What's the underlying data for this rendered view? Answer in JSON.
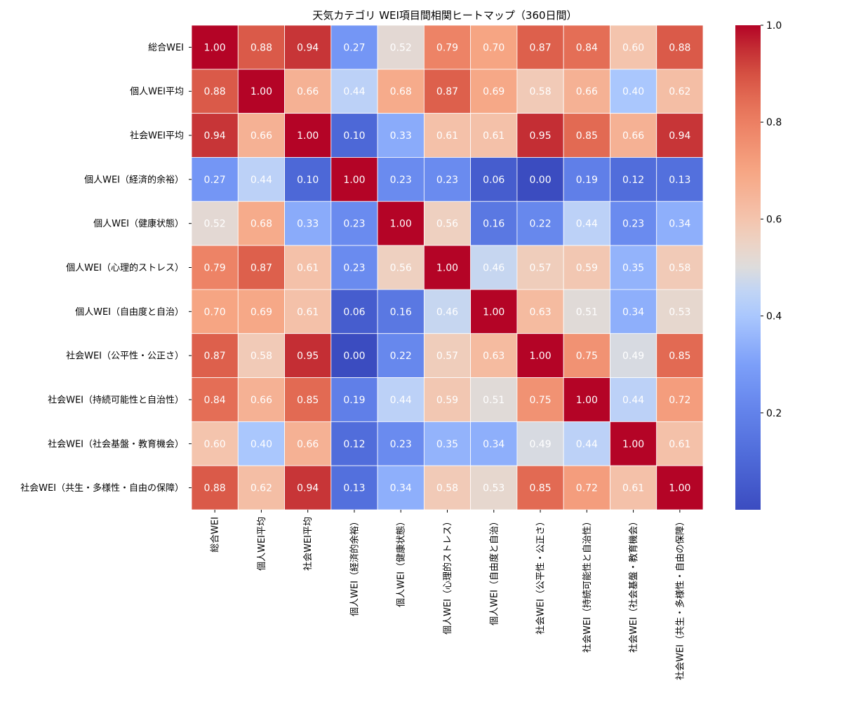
{
  "chart_data": {
    "type": "heatmap",
    "title": "天気カテゴリ WEI項目間相関ヒートマップ（360日間）",
    "xlabel": "",
    "ylabel": "",
    "labels": [
      "総合WEI",
      "個人WEI平均",
      "社会WEI平均",
      "個人WEI（経済的余裕）",
      "個人WEI（健康状態）",
      "個人WEI（心理的ストレス）",
      "個人WEI（自由度と自治）",
      "社会WEI（公平性・公正さ）",
      "社会WEI（持続可能性と自治性）",
      "社会WEI（社会基盤・教育機会）",
      "社会WEI（共生・多様性・自由の保障）"
    ],
    "values": [
      [
        1.0,
        0.88,
        0.94,
        0.27,
        0.52,
        0.79,
        0.7,
        0.87,
        0.84,
        0.6,
        0.88
      ],
      [
        0.88,
        1.0,
        0.66,
        0.44,
        0.68,
        0.87,
        0.69,
        0.58,
        0.66,
        0.4,
        0.62
      ],
      [
        0.94,
        0.66,
        1.0,
        0.1,
        0.33,
        0.61,
        0.61,
        0.95,
        0.85,
        0.66,
        0.94
      ],
      [
        0.27,
        0.44,
        0.1,
        1.0,
        0.23,
        0.23,
        0.06,
        0.0,
        0.19,
        0.12,
        0.13
      ],
      [
        0.52,
        0.68,
        0.33,
        0.23,
        1.0,
        0.56,
        0.16,
        0.22,
        0.44,
        0.23,
        0.34
      ],
      [
        0.79,
        0.87,
        0.61,
        0.23,
        0.56,
        1.0,
        0.46,
        0.57,
        0.59,
        0.35,
        0.58
      ],
      [
        0.7,
        0.69,
        0.61,
        0.06,
        0.16,
        0.46,
        1.0,
        0.63,
        0.51,
        0.34,
        0.53
      ],
      [
        0.87,
        0.58,
        0.95,
        0.0,
        0.22,
        0.57,
        0.63,
        1.0,
        0.75,
        0.49,
        0.85
      ],
      [
        0.84,
        0.66,
        0.85,
        0.19,
        0.44,
        0.59,
        0.51,
        0.75,
        1.0,
        0.44,
        0.72
      ],
      [
        0.6,
        0.4,
        0.66,
        0.12,
        0.23,
        0.35,
        0.34,
        0.49,
        0.44,
        1.0,
        0.61
      ],
      [
        0.88,
        0.62,
        0.94,
        0.13,
        0.34,
        0.58,
        0.53,
        0.85,
        0.72,
        0.61,
        1.0
      ]
    ],
    "colorbar": {
      "min": 0.0,
      "max": 1.0,
      "ticks": [
        0.2,
        0.4,
        0.6,
        0.8,
        1.0
      ],
      "tick_labels": [
        "0.2",
        "0.4",
        "0.6",
        "0.8",
        "1.0"
      ],
      "colormap": "coolwarm",
      "low_color": "#3b4cc0",
      "mid_color": "#dddcdc",
      "high_color": "#b40426"
    },
    "cell_text_color": "#ffffff",
    "grid_line_color": "#ffffff"
  }
}
